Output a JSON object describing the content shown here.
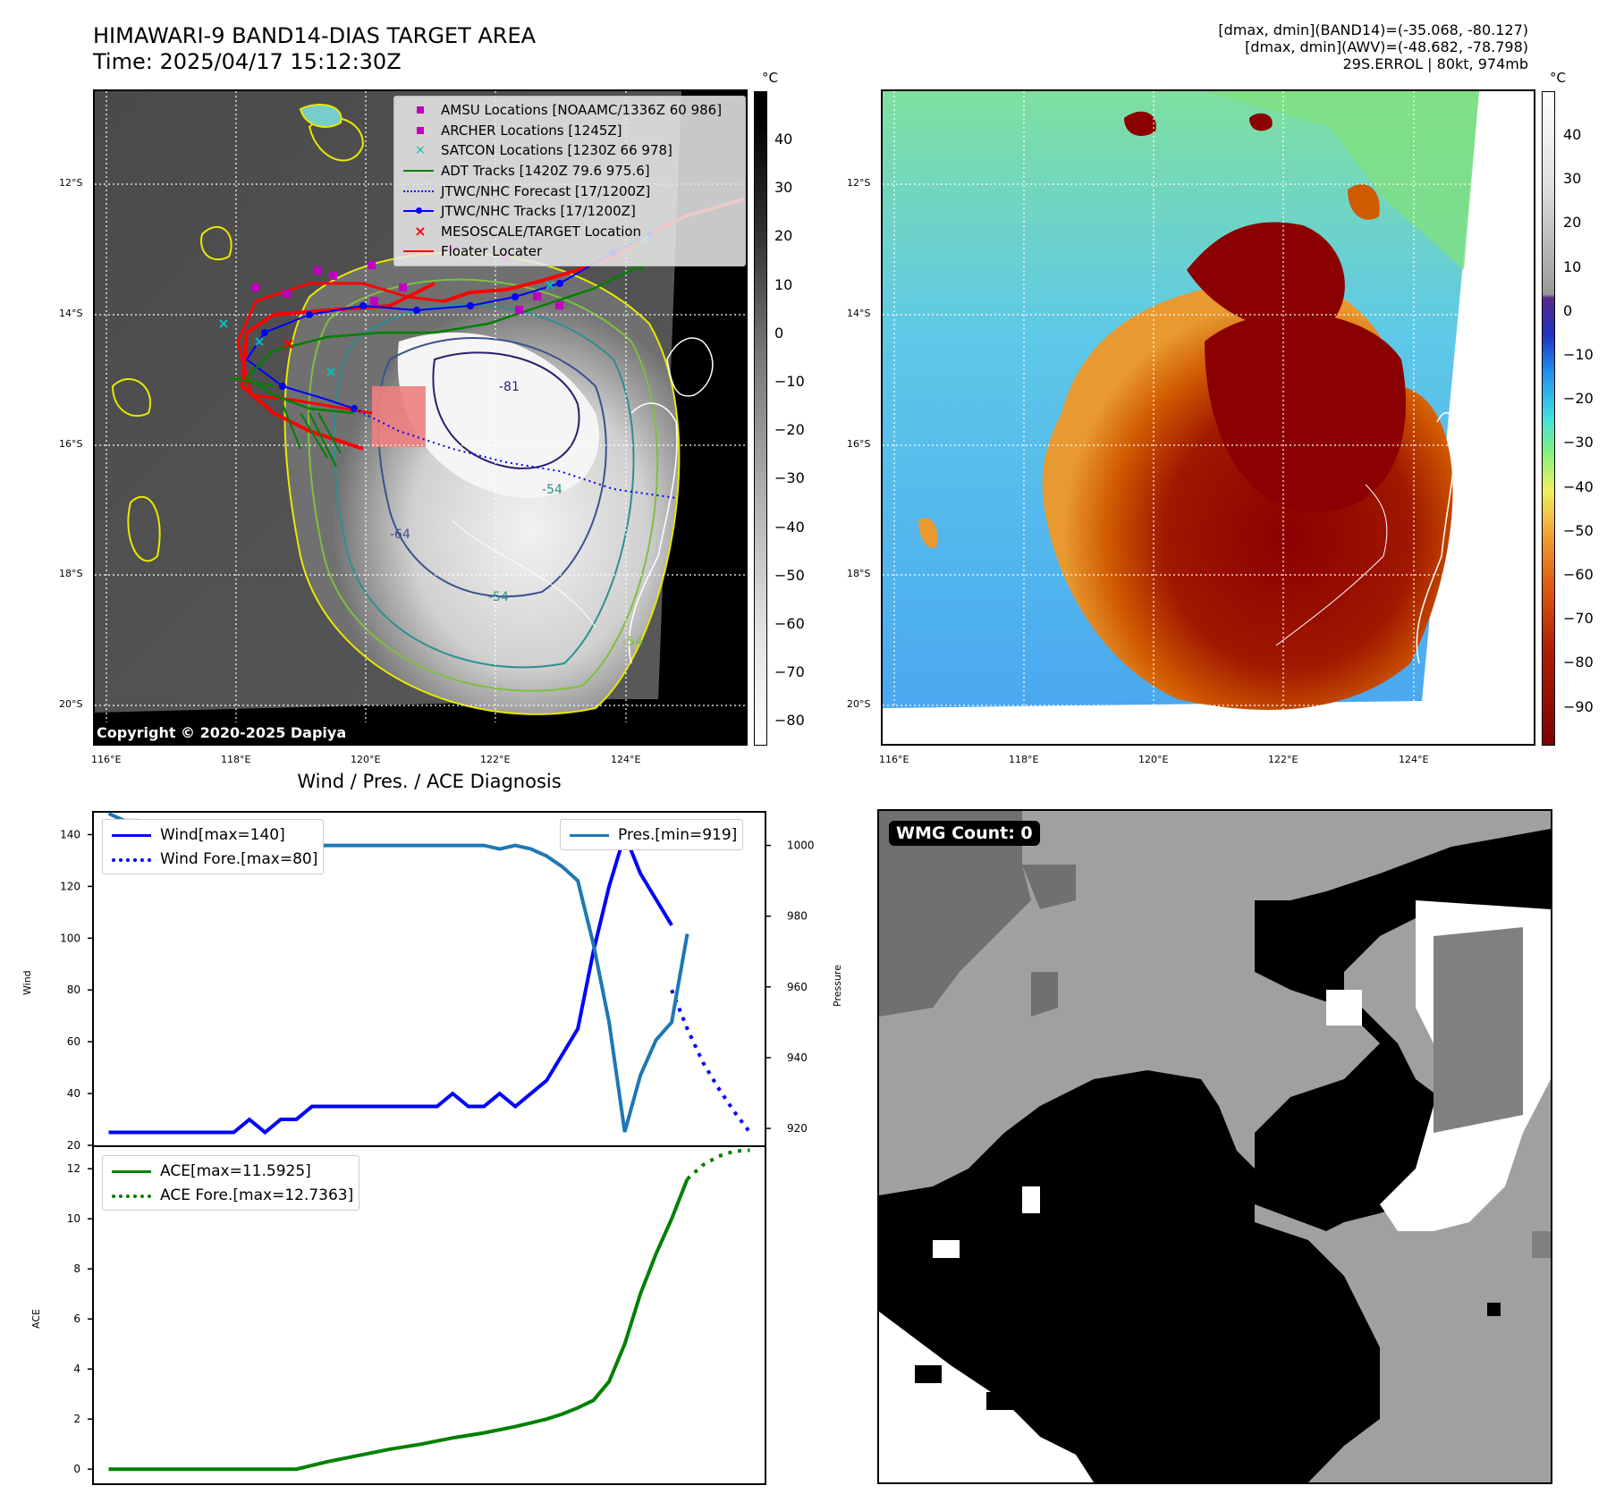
{
  "header": {
    "title_line1": "HIMAWARI-9 BAND14-DIAS TARGET AREA",
    "title_line2": "Time: 2025/04/17 15:12:30Z",
    "info_line1": "[dmax, dmin](BAND14)=(-35.068, -80.127)",
    "info_line2": "[dmax, dmin](AWV)=(-48.682, -78.798)",
    "info_line3": "29S.ERROL | 80kt, 974mb"
  },
  "map": {
    "lat_labels": [
      "12°S",
      "14°S",
      "16°S",
      "18°S",
      "20°S"
    ],
    "lon_labels": [
      "116°E",
      "118°E",
      "120°E",
      "122°E",
      "124°E"
    ],
    "contour_labels": [
      "-81",
      "-64",
      "-54",
      "-54",
      "-54"
    ],
    "copyright": "Copyright © 2020-2025 Dapiya",
    "colorbar_unit": "°C",
    "colorbar_left_ticks": [
      "40",
      "30",
      "20",
      "10",
      "0",
      "−10",
      "−20",
      "−30",
      "−40",
      "−50",
      "−60",
      "−70",
      "−80"
    ],
    "colorbar_right_ticks": [
      "40",
      "30",
      "20",
      "10",
      "0",
      "−10",
      "−20",
      "−30",
      "−40",
      "−50",
      "−60",
      "−70",
      "−80",
      "−90"
    ],
    "legend": [
      {
        "label": "AMSU Locations [NOAAMC/1336Z 60 986]",
        "color": "#bf00bf",
        "marker": "square"
      },
      {
        "label": "ARCHER Locations [1245Z]",
        "color": "#bf00bf",
        "marker": "square"
      },
      {
        "label": "SATCON Locations [1230Z 66 978]",
        "color": "#00bfbf",
        "marker": "x"
      },
      {
        "label": "ADT Tracks [1420Z 79.6 975.6]",
        "color": "#008000",
        "marker": "line"
      },
      {
        "label": "JTWC/NHC Forecast [17/1200Z]",
        "color": "#0000ff",
        "marker": "dotted"
      },
      {
        "label": "JTWC/NHC Tracks [17/1200Z]",
        "color": "#0000ff",
        "marker": "line-dot"
      },
      {
        "label": "MESOSCALE/TARGET Location",
        "color": "#ff0000",
        "marker": "x"
      },
      {
        "label": "Floater Locater",
        "color": "#ff0000",
        "marker": "line"
      }
    ]
  },
  "diagnosis": {
    "title": "Wind / Pres. / ACE Diagnosis",
    "wind_ylabel": "Wind",
    "pres_ylabel": "Pressure",
    "ace_ylabel": "ACE",
    "wind_ticks": [
      "140",
      "120",
      "100",
      "80",
      "60",
      "40",
      "20"
    ],
    "pres_ticks": [
      "1000",
      "980",
      "960",
      "940",
      "920"
    ],
    "ace_ticks": [
      "12",
      "10",
      "8",
      "6",
      "4",
      "2",
      "0"
    ],
    "legend_wind": "Wind[max=140]",
    "legend_wind_fore": "Wind Fore.[max=80]",
    "legend_pres": "Pres.[min=919]",
    "legend_ace": "ACE[max=11.5925]",
    "legend_ace_fore": "ACE Fore.[max=12.7363]"
  },
  "wmg": {
    "label": "WMG Count: 0"
  },
  "chart_data": [
    {
      "type": "line",
      "title": "Wind / Pres. / ACE Diagnosis",
      "ylabel": "Wind",
      "ylim": [
        20,
        145
      ],
      "series": [
        {
          "name": "Wind[max=140]",
          "color": "#0000ff",
          "style": "solid",
          "x": [
            0,
            1,
            2,
            3,
            4,
            5,
            6,
            7,
            8,
            9,
            10,
            11,
            12,
            13,
            14,
            15,
            16,
            17,
            18,
            19,
            20,
            21,
            22,
            23,
            24,
            25,
            26,
            27,
            28,
            29,
            30,
            31,
            32,
            33,
            34,
            35,
            36
          ],
          "values": [
            25,
            25,
            25,
            25,
            25,
            25,
            25,
            25,
            25,
            30,
            25,
            30,
            30,
            35,
            35,
            35,
            35,
            35,
            35,
            35,
            35,
            35,
            40,
            35,
            35,
            40,
            35,
            40,
            45,
            55,
            65,
            95,
            120,
            140,
            125,
            115,
            105
          ]
        },
        {
          "name": "Wind Fore.[max=80]",
          "color": "#0000ff",
          "style": "dotted",
          "x": [
            36,
            37,
            38,
            39,
            40,
            41
          ],
          "values": [
            80,
            65,
            52,
            42,
            33,
            25
          ]
        }
      ]
    },
    {
      "type": "line",
      "ylabel": "Pressure",
      "ylim": [
        918,
        1010
      ],
      "series": [
        {
          "name": "Pres.[min=919]",
          "color": "#1f77b4",
          "style": "solid",
          "x": [
            0,
            1,
            2,
            3,
            4,
            5,
            6,
            7,
            8,
            9,
            10,
            11,
            12,
            13,
            14,
            15,
            16,
            17,
            18,
            19,
            20,
            21,
            22,
            23,
            24,
            25,
            26,
            27,
            28,
            29,
            30,
            31,
            32,
            33,
            34,
            35,
            36,
            37
          ],
          "values": [
            1009,
            1007,
            1007,
            1005,
            1005,
            1003,
            1002,
            1001,
            1001,
            1000,
            1000,
            1000,
            1000,
            1000,
            1000,
            1000,
            1000,
            1000,
            1000,
            1000,
            1000,
            1000,
            1000,
            1000,
            1000,
            999,
            1000,
            999,
            997,
            994,
            990,
            972,
            950,
            919,
            935,
            945,
            950,
            975
          ]
        }
      ]
    },
    {
      "type": "line",
      "ylabel": "ACE",
      "ylim": [
        -0.6,
        12.9
      ],
      "series": [
        {
          "name": "ACE[max=11.5925]",
          "color": "#008000",
          "style": "solid",
          "x": [
            0,
            2,
            4,
            6,
            8,
            10,
            12,
            14,
            16,
            18,
            20,
            22,
            24,
            26,
            27,
            28,
            29,
            30,
            31,
            32,
            33,
            34,
            35,
            36,
            37
          ],
          "values": [
            0,
            0,
            0,
            0,
            0,
            0,
            0,
            0.3,
            0.55,
            0.8,
            1.0,
            1.25,
            1.45,
            1.7,
            1.85,
            2.0,
            2.2,
            2.45,
            2.75,
            3.5,
            5.0,
            7.0,
            8.6,
            10.0,
            11.59
          ]
        },
        {
          "name": "ACE Fore.[max=12.7363]",
          "color": "#008000",
          "style": "dotted",
          "x": [
            37,
            38,
            39,
            40,
            41
          ],
          "values": [
            11.59,
            12.15,
            12.5,
            12.7,
            12.74
          ]
        }
      ]
    }
  ]
}
